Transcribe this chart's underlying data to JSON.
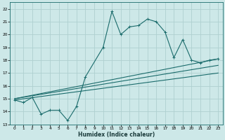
{
  "title": "",
  "xlabel": "Humidex (Indice chaleur)",
  "ylabel": "",
  "xlim": [
    -0.5,
    23.5
  ],
  "ylim": [
    13,
    22.5
  ],
  "yticks": [
    13,
    14,
    15,
    16,
    17,
    18,
    19,
    20,
    21,
    22
  ],
  "xticks": [
    0,
    1,
    2,
    3,
    4,
    5,
    6,
    7,
    8,
    9,
    10,
    11,
    12,
    13,
    14,
    15,
    16,
    17,
    18,
    19,
    20,
    21,
    22,
    23
  ],
  "bg_color": "#cde8e8",
  "grid_color": "#aed0d0",
  "line_color": "#1a6b6b",
  "line1_x": [
    0,
    1,
    2,
    3,
    4,
    5,
    6,
    7,
    8,
    10,
    11,
    12,
    13,
    14,
    15,
    16,
    17,
    18,
    19,
    20,
    21,
    22,
    23
  ],
  "line1_y": [
    14.9,
    14.7,
    15.1,
    13.8,
    14.1,
    14.1,
    13.3,
    14.4,
    16.7,
    19.0,
    21.8,
    20.0,
    20.6,
    20.7,
    21.2,
    21.0,
    20.2,
    18.2,
    19.6,
    18.0,
    17.8,
    18.0,
    18.1
  ],
  "line2_x": [
    0,
    23
  ],
  "line2_y": [
    15.0,
    18.1
  ],
  "line3_x": [
    0,
    23
  ],
  "line3_y": [
    15.0,
    17.6
  ],
  "line4_x": [
    0,
    23
  ],
  "line4_y": [
    14.9,
    17.0
  ]
}
